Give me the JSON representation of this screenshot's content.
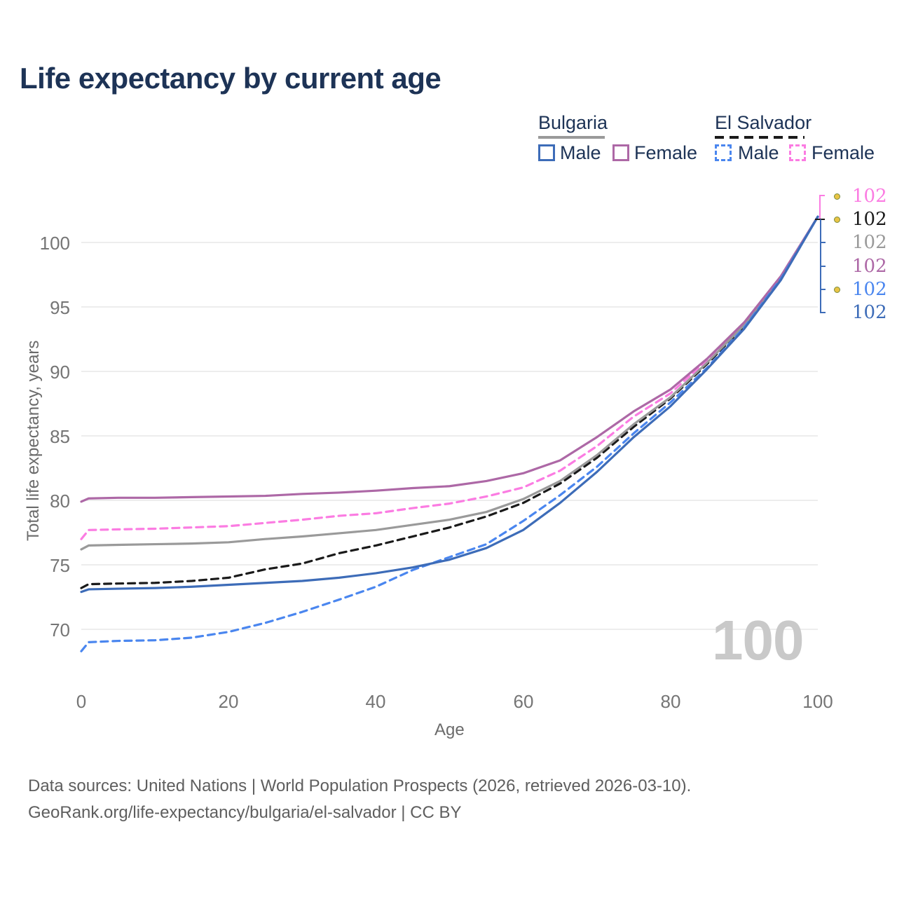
{
  "header": {
    "title": "Life expectancy by current age"
  },
  "legend": {
    "groups": [
      {
        "label": "Bulgaria",
        "line_style": "solid",
        "line_color": "#9a9a9a",
        "items": [
          {
            "label": "Male",
            "color": "#3d6cb8",
            "dashed": false
          },
          {
            "label": "Female",
            "color": "#ad68a6",
            "dashed": false
          }
        ]
      },
      {
        "label": "El Salvador",
        "line_style": "dashed",
        "line_color": "#1a1a1a",
        "items": [
          {
            "label": "Male",
            "color": "#4a86ef",
            "dashed": true
          },
          {
            "label": "Female",
            "color": "#fb7ce2",
            "dashed": true
          }
        ]
      }
    ]
  },
  "chart_data": {
    "type": "line",
    "title": "Life expectancy by current age",
    "xlabel": "Age",
    "ylabel": "Total life expectancy, years",
    "xlim": [
      0,
      100
    ],
    "ylim": [
      68,
      103
    ],
    "grid": "horizontal",
    "xticks": [
      0,
      20,
      40,
      60,
      80,
      100
    ],
    "yticks": [
      70,
      75,
      80,
      85,
      90,
      95,
      100
    ],
    "x": [
      0,
      1,
      5,
      10,
      15,
      20,
      25,
      30,
      35,
      40,
      45,
      50,
      55,
      60,
      65,
      70,
      75,
      80,
      85,
      90,
      95,
      100
    ],
    "series": [
      {
        "key": "sv-female",
        "country": "El Salvador",
        "sex": "Female",
        "flag": "el-salvador",
        "color": "#fb7ce2",
        "dashed": true,
        "end_label": "102",
        "values": [
          77.0,
          77.7,
          77.75,
          77.8,
          77.9,
          78.0,
          78.25,
          78.5,
          78.8,
          79.0,
          79.4,
          79.75,
          80.3,
          81.0,
          82.3,
          84.2,
          86.5,
          88.3,
          90.9,
          93.7,
          97.3,
          102
        ]
      },
      {
        "key": "sv-all",
        "country": "El Salvador",
        "sex": "Both",
        "flag": "el-salvador",
        "color": "#1a1a1a",
        "dashed": true,
        "end_label": "102",
        "values": [
          73.2,
          73.5,
          73.55,
          73.6,
          73.75,
          74.0,
          74.65,
          75.1,
          75.9,
          76.5,
          77.2,
          77.9,
          78.75,
          79.8,
          81.3,
          83.3,
          85.7,
          87.9,
          90.6,
          93.5,
          97.25,
          102
        ]
      },
      {
        "key": "bg-all",
        "country": "Bulgaria",
        "sex": "Both",
        "flag": "bulgaria",
        "color": "#9a9a9a",
        "dashed": false,
        "end_label": "102",
        "values": [
          76.2,
          76.5,
          76.55,
          76.6,
          76.65,
          76.75,
          77.0,
          77.2,
          77.45,
          77.7,
          78.1,
          78.5,
          79.1,
          80.1,
          81.5,
          83.5,
          85.9,
          88.0,
          90.7,
          93.6,
          97.3,
          102
        ]
      },
      {
        "key": "bg-female",
        "country": "Bulgaria",
        "sex": "Female",
        "flag": "bulgaria",
        "color": "#ad68a6",
        "dashed": false,
        "end_label": "102",
        "values": [
          79.9,
          80.15,
          80.2,
          80.2,
          80.25,
          80.3,
          80.35,
          80.5,
          80.6,
          80.75,
          80.95,
          81.1,
          81.5,
          82.1,
          83.1,
          84.9,
          86.9,
          88.6,
          91.0,
          93.8,
          97.4,
          102
        ]
      },
      {
        "key": "sv-male",
        "country": "El Salvador",
        "sex": "Male",
        "flag": "el-salvador",
        "color": "#4a86ef",
        "dashed": true,
        "end_label": "102",
        "values": [
          68.3,
          69.0,
          69.1,
          69.15,
          69.35,
          69.8,
          70.5,
          71.35,
          72.3,
          73.3,
          74.6,
          75.6,
          76.6,
          78.4,
          80.4,
          82.6,
          85.2,
          87.6,
          90.3,
          93.4,
          97.2,
          102
        ]
      },
      {
        "key": "bg-male",
        "country": "Bulgaria",
        "sex": "Male",
        "flag": "bulgaria",
        "color": "#3d6cb8",
        "dashed": false,
        "end_label": "102",
        "values": [
          72.9,
          73.1,
          73.15,
          73.2,
          73.3,
          73.45,
          73.6,
          73.75,
          74.0,
          74.35,
          74.8,
          75.4,
          76.3,
          77.7,
          79.8,
          82.2,
          84.9,
          87.3,
          90.2,
          93.3,
          97.1,
          102
        ]
      }
    ]
  },
  "watermark": "100",
  "footer": {
    "line1": "Data sources: United Nations | World Population Prospects (2026, retrieved 2026-03-10).",
    "line2": "GeoRank.org/life-expectancy/bulgaria/el-salvador | CC BY"
  }
}
